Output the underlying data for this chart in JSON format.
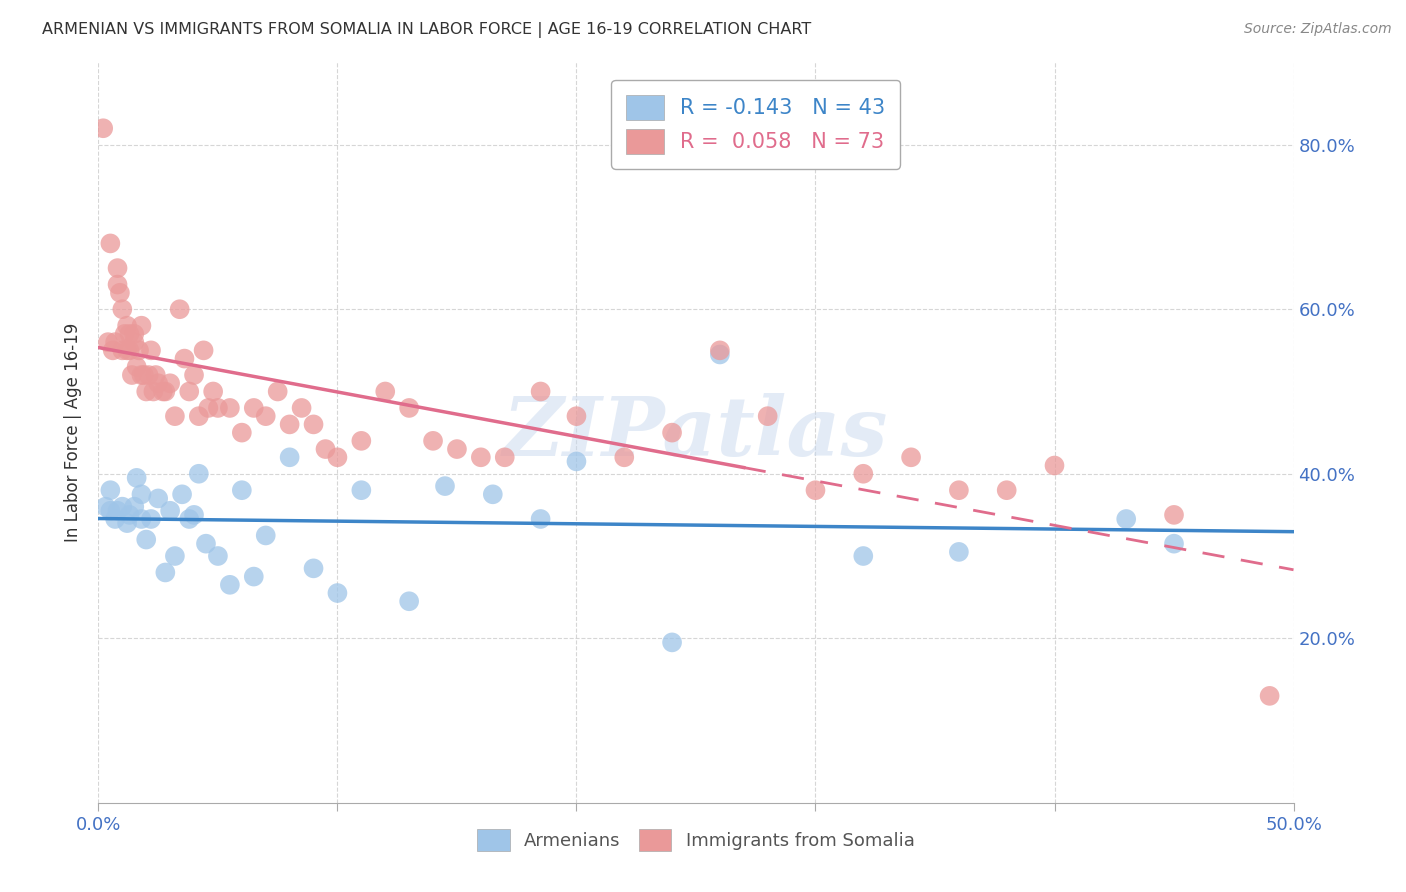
{
  "title": "ARMENIAN VS IMMIGRANTS FROM SOMALIA IN LABOR FORCE | AGE 16-19 CORRELATION CHART",
  "source": "Source: ZipAtlas.com",
  "ylabel": "In Labor Force | Age 16-19",
  "xlim": [
    0.0,
    0.5
  ],
  "ylim": [
    0.0,
    0.9
  ],
  "xtick_labels": [
    "0.0%",
    "",
    "",
    "",
    "",
    "50.0%"
  ],
  "xtick_values": [
    0.0,
    0.1,
    0.2,
    0.3,
    0.4,
    0.5
  ],
  "ytick_labels": [
    "20.0%",
    "40.0%",
    "60.0%",
    "80.0%"
  ],
  "ytick_values": [
    0.2,
    0.4,
    0.6,
    0.8
  ],
  "watermark": "ZIPatlas",
  "legend_armenian": "R = -0.143   N = 43",
  "legend_somalia": "R =  0.058   N = 73",
  "armenian_color": "#9fc5e8",
  "somalia_color": "#ea9999",
  "armenian_line_color": "#3d85c8",
  "somalia_line_color": "#e06c8c",
  "armenian_points_x": [
    0.003,
    0.005,
    0.005,
    0.007,
    0.008,
    0.01,
    0.012,
    0.013,
    0.015,
    0.016,
    0.018,
    0.018,
    0.02,
    0.022,
    0.025,
    0.028,
    0.03,
    0.032,
    0.035,
    0.038,
    0.04,
    0.042,
    0.045,
    0.05,
    0.055,
    0.06,
    0.065,
    0.07,
    0.08,
    0.09,
    0.1,
    0.11,
    0.13,
    0.145,
    0.165,
    0.185,
    0.2,
    0.24,
    0.26,
    0.32,
    0.36,
    0.43,
    0.45
  ],
  "armenian_points_y": [
    0.36,
    0.355,
    0.38,
    0.345,
    0.355,
    0.36,
    0.34,
    0.35,
    0.36,
    0.395,
    0.345,
    0.375,
    0.32,
    0.345,
    0.37,
    0.28,
    0.355,
    0.3,
    0.375,
    0.345,
    0.35,
    0.4,
    0.315,
    0.3,
    0.265,
    0.38,
    0.275,
    0.325,
    0.42,
    0.285,
    0.255,
    0.38,
    0.245,
    0.385,
    0.375,
    0.345,
    0.415,
    0.195,
    0.545,
    0.3,
    0.305,
    0.345,
    0.315
  ],
  "somalia_points_x": [
    0.002,
    0.004,
    0.005,
    0.006,
    0.007,
    0.008,
    0.008,
    0.009,
    0.01,
    0.01,
    0.011,
    0.012,
    0.012,
    0.013,
    0.013,
    0.014,
    0.015,
    0.015,
    0.016,
    0.017,
    0.018,
    0.018,
    0.019,
    0.02,
    0.021,
    0.022,
    0.023,
    0.024,
    0.025,
    0.027,
    0.028,
    0.03,
    0.032,
    0.034,
    0.036,
    0.038,
    0.04,
    0.042,
    0.044,
    0.046,
    0.048,
    0.05,
    0.055,
    0.06,
    0.065,
    0.07,
    0.075,
    0.08,
    0.085,
    0.09,
    0.095,
    0.1,
    0.11,
    0.12,
    0.13,
    0.14,
    0.15,
    0.16,
    0.17,
    0.185,
    0.2,
    0.22,
    0.24,
    0.26,
    0.28,
    0.3,
    0.32,
    0.34,
    0.36,
    0.38,
    0.4,
    0.45,
    0.49
  ],
  "somalia_points_y": [
    0.82,
    0.56,
    0.68,
    0.55,
    0.56,
    0.63,
    0.65,
    0.62,
    0.6,
    0.55,
    0.57,
    0.55,
    0.58,
    0.55,
    0.57,
    0.52,
    0.56,
    0.57,
    0.53,
    0.55,
    0.52,
    0.58,
    0.52,
    0.5,
    0.52,
    0.55,
    0.5,
    0.52,
    0.51,
    0.5,
    0.5,
    0.51,
    0.47,
    0.6,
    0.54,
    0.5,
    0.52,
    0.47,
    0.55,
    0.48,
    0.5,
    0.48,
    0.48,
    0.45,
    0.48,
    0.47,
    0.5,
    0.46,
    0.48,
    0.46,
    0.43,
    0.42,
    0.44,
    0.5,
    0.48,
    0.44,
    0.43,
    0.42,
    0.42,
    0.5,
    0.47,
    0.42,
    0.45,
    0.55,
    0.47,
    0.38,
    0.4,
    0.42,
    0.38,
    0.38,
    0.41,
    0.35,
    0.13
  ],
  "background_color": "#ffffff",
  "grid_color": "#cccccc",
  "tick_color": "#4472c4",
  "axis_color": "#aaaaaa",
  "somalia_line_solid_end": 0.27,
  "somalia_line_dashed_start": 0.27
}
